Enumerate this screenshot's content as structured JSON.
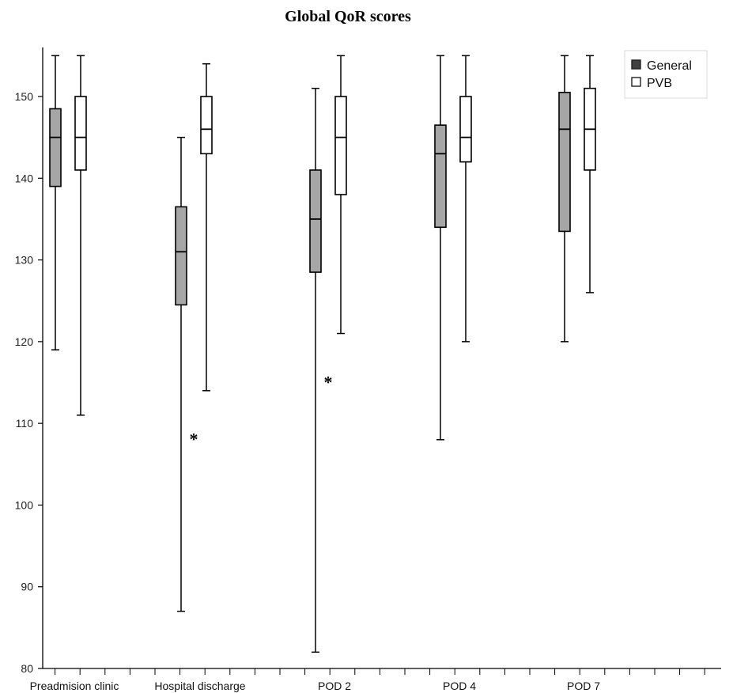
{
  "chart_data": {
    "type": "box",
    "title": "Global QoR scores",
    "xlabel": "",
    "ylabel": "",
    "ylim": [
      80,
      155
    ],
    "yticks": [
      80,
      90,
      100,
      110,
      120,
      130,
      140,
      150
    ],
    "categories": [
      "Preadmision clinic",
      "Hospital discharge",
      "POD 2",
      "POD 4",
      "POD 7"
    ],
    "legend_position": "top-right",
    "outlier_marker": "*",
    "series": [
      {
        "name": "General",
        "color": "#a6a6a6",
        "boxes": [
          {
            "min": 119,
            "q1": 139,
            "median": 145,
            "q3": 148.5,
            "max": 155
          },
          {
            "min": 87,
            "q1": 124.5,
            "median": 131,
            "q3": 136.5,
            "max": 145
          },
          {
            "min": 82,
            "q1": 128.5,
            "median": 135,
            "q3": 141,
            "max": 151
          },
          {
            "min": 108,
            "q1": 134,
            "median": 143,
            "q3": 146.5,
            "max": 155
          },
          {
            "min": 120,
            "q1": 133.5,
            "median": 146,
            "q3": 150.5,
            "max": 155
          }
        ]
      },
      {
        "name": "PVB",
        "color": "#ffffff",
        "boxes": [
          {
            "min": 111,
            "q1": 141,
            "median": 145,
            "q3": 150,
            "max": 155
          },
          {
            "min": 114,
            "q1": 143,
            "median": 146,
            "q3": 150,
            "max": 154,
            "outliers": [
              108.5
            ]
          },
          {
            "min": 121,
            "q1": 138,
            "median": 145,
            "q3": 150,
            "max": 155,
            "outliers": [
              115.5
            ]
          },
          {
            "min": 120,
            "q1": 142,
            "median": 145,
            "q3": 150,
            "max": 155
          },
          {
            "min": 126,
            "q1": 141,
            "median": 146,
            "q3": 151,
            "max": 155
          }
        ]
      }
    ]
  }
}
